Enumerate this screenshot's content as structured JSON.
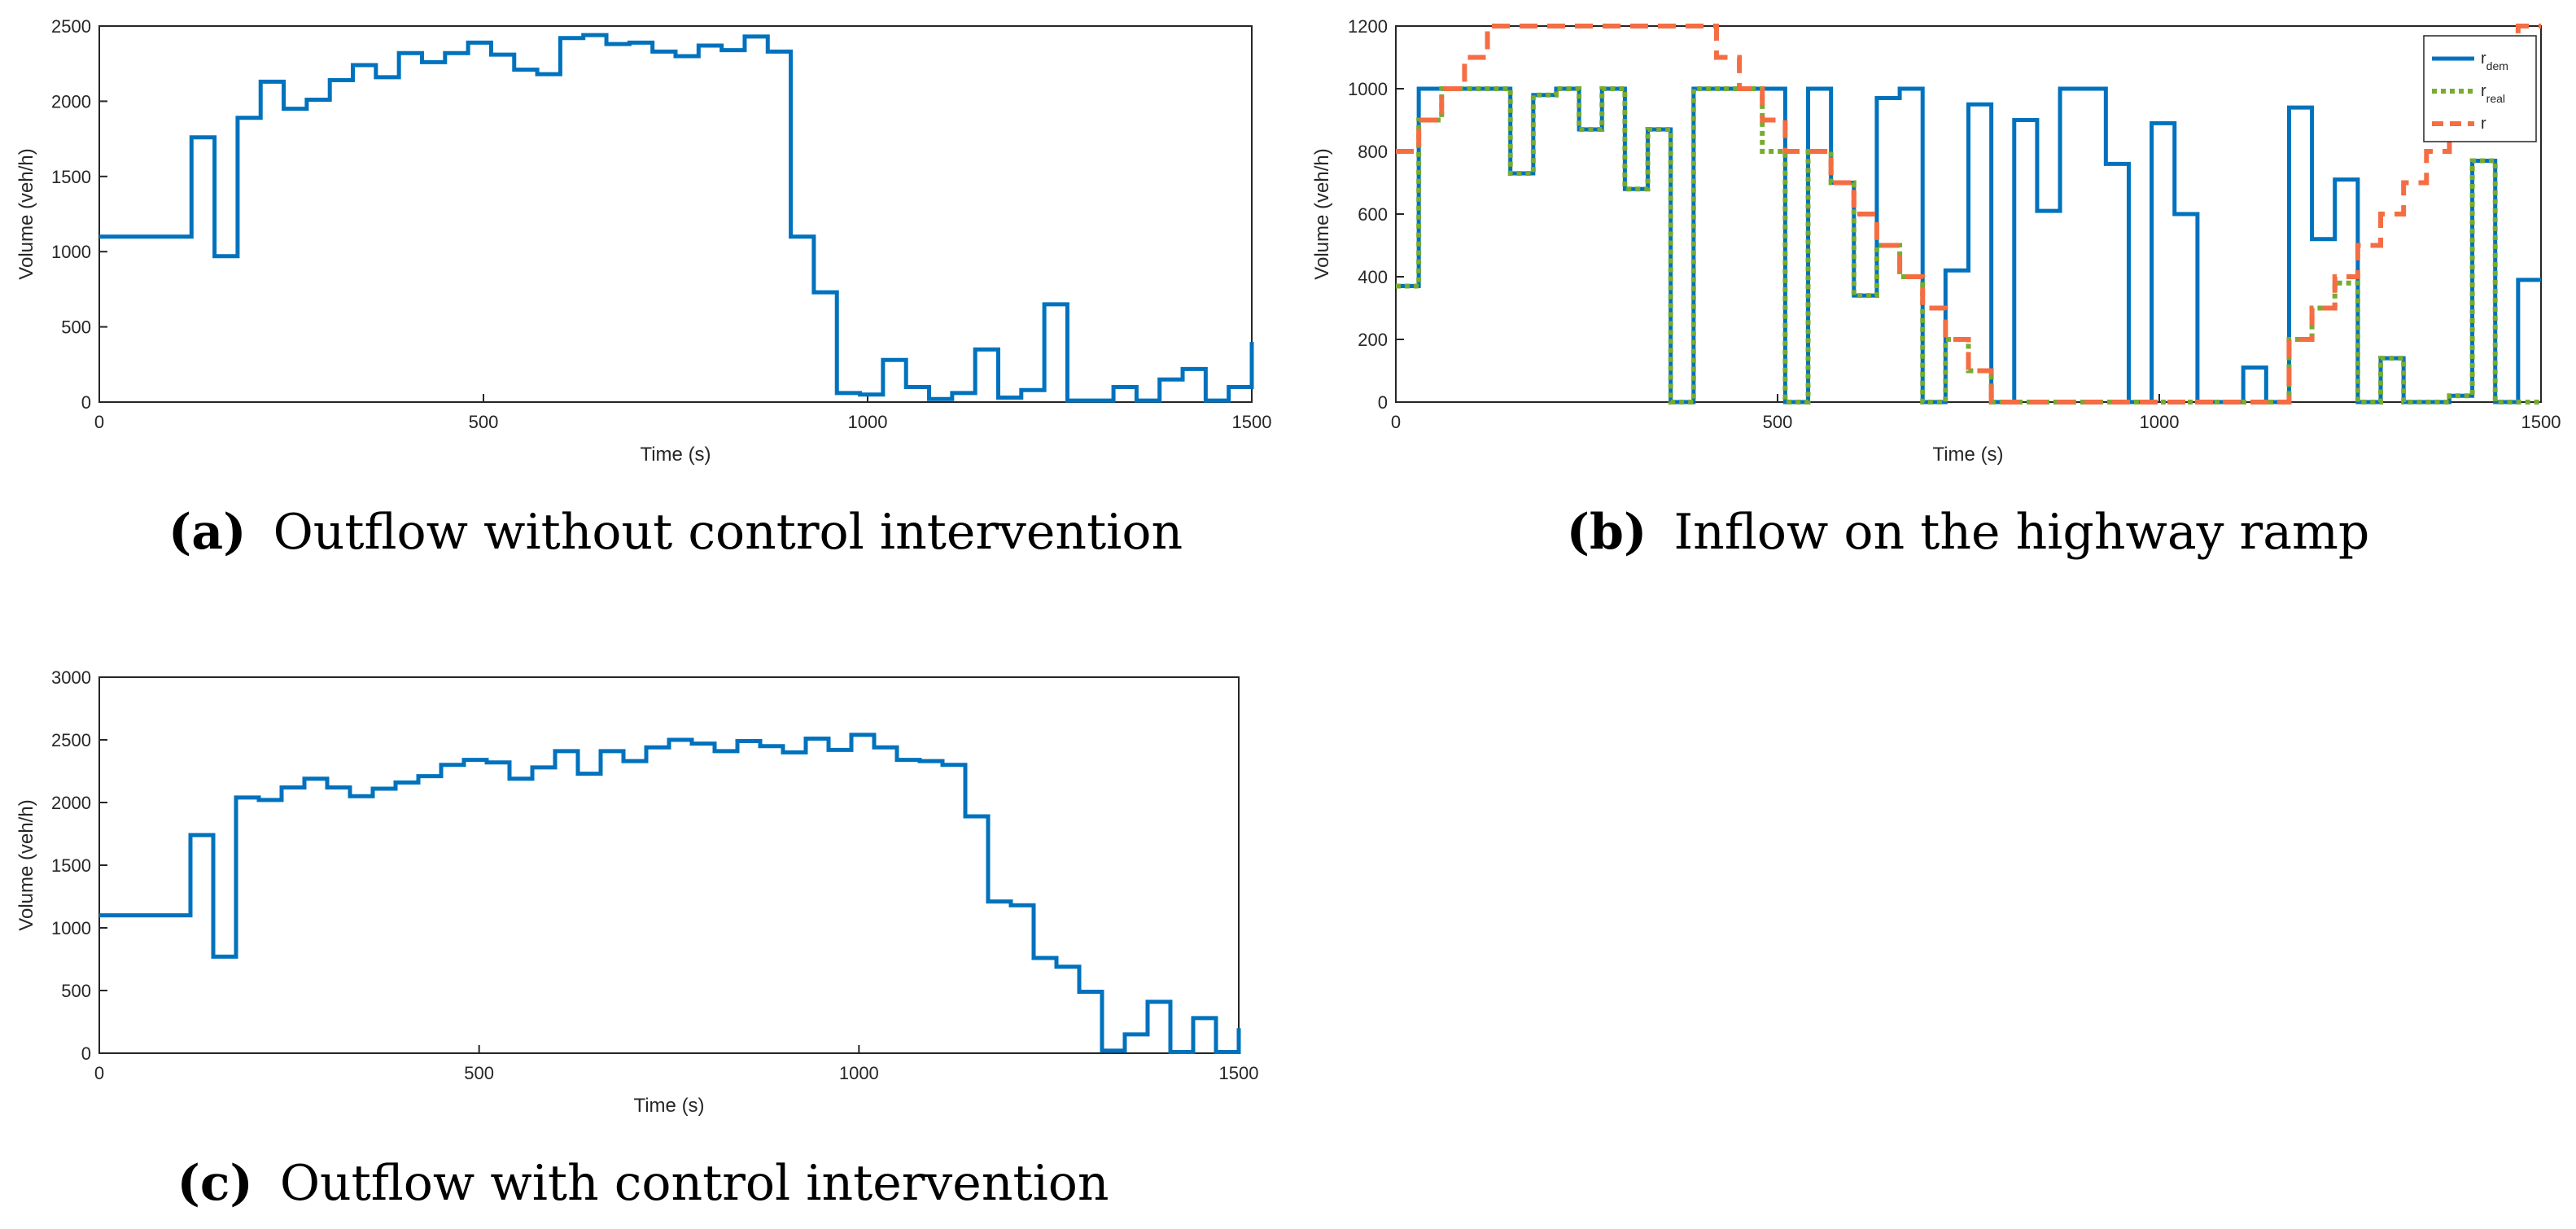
{
  "colors": {
    "dem": "#0072BD",
    "real": "#77AC30",
    "r": "#F46D43",
    "axis": "#262626"
  },
  "chart_data": [
    {
      "id": "a",
      "type": "line",
      "step": true,
      "caption_letter": "(a)",
      "caption_text": "Outflow without control intervention",
      "xlabel": "Time (s)",
      "ylabel": "Volume (veh/h)",
      "xlim": [
        0,
        1500
      ],
      "ylim": [
        0,
        2500
      ],
      "xticks": [
        0,
        500,
        1000,
        1500
      ],
      "yticks": [
        0,
        500,
        1000,
        1500,
        2000,
        2500
      ],
      "series": [
        {
          "name": "outflow",
          "color_key": "dem",
          "dash": "solid",
          "x": [
            0,
            120,
            150,
            180,
            210,
            240,
            270,
            300,
            330,
            360,
            390,
            420,
            450,
            480,
            510,
            540,
            570,
            600,
            630,
            660,
            690,
            720,
            750,
            780,
            810,
            840,
            870,
            900,
            930,
            960,
            990,
            1020,
            1050,
            1080,
            1110,
            1140,
            1170,
            1200,
            1230,
            1260,
            1290,
            1320,
            1350,
            1380,
            1410,
            1440,
            1470,
            1500
          ],
          "y": [
            1100,
            1760,
            970,
            1890,
            2130,
            1950,
            2010,
            2140,
            2240,
            2160,
            2320,
            2260,
            2320,
            2390,
            2310,
            2210,
            2180,
            2420,
            2440,
            2380,
            2390,
            2330,
            2300,
            2370,
            2340,
            2430,
            2330,
            1100,
            730,
            60,
            50,
            280,
            100,
            20,
            60,
            350,
            30,
            80,
            650,
            10,
            10,
            100,
            10,
            150,
            220,
            10,
            100,
            400
          ]
        }
      ]
    },
    {
      "id": "b",
      "type": "line",
      "step": true,
      "caption_letter": "(b)",
      "caption_text": "Inflow on the highway ramp",
      "xlabel": "Time (s)",
      "ylabel": "Volume (veh/h)",
      "xlim": [
        0,
        1500
      ],
      "ylim": [
        0,
        1200
      ],
      "xticks": [
        0,
        500,
        1000,
        1500
      ],
      "yticks": [
        0,
        200,
        400,
        600,
        800,
        1000,
        1200
      ],
      "legend": {
        "position": "top-right",
        "entries": [
          {
            "key": "dem",
            "base": "r",
            "sub": "dem"
          },
          {
            "key": "real",
            "base": "r",
            "sub": "real"
          },
          {
            "key": "r",
            "base": "r",
            "sub": ""
          }
        ]
      },
      "series": [
        {
          "name": "r_dem",
          "color_key": "dem",
          "dash": "solid",
          "x": [
            0,
            30,
            60,
            90,
            120,
            150,
            180,
            210,
            240,
            270,
            300,
            330,
            360,
            390,
            420,
            450,
            480,
            510,
            540,
            570,
            600,
            630,
            660,
            690,
            720,
            750,
            780,
            810,
            840,
            870,
            900,
            930,
            960,
            990,
            1020,
            1050,
            1080,
            1110,
            1140,
            1170,
            1200,
            1230,
            1260,
            1290,
            1320,
            1350,
            1380,
            1410,
            1440,
            1470,
            1500
          ],
          "y": [
            370,
            1000,
            1000,
            1000,
            1000,
            730,
            980,
            1000,
            870,
            1000,
            680,
            870,
            0,
            1000,
            1000,
            1000,
            1000,
            0,
            1000,
            700,
            340,
            970,
            1000,
            0,
            420,
            950,
            0,
            900,
            610,
            1000,
            1000,
            760,
            0,
            890,
            600,
            0,
            0,
            110,
            0,
            940,
            520,
            710,
            0,
            140,
            0,
            0,
            20,
            770,
            0,
            390,
            390
          ]
        },
        {
          "name": "r_real",
          "color_key": "real",
          "dash": "dot",
          "x": [
            0,
            30,
            60,
            90,
            120,
            150,
            180,
            210,
            240,
            270,
            300,
            330,
            360,
            390,
            420,
            450,
            480,
            510,
            540,
            570,
            600,
            630,
            660,
            690,
            720,
            750,
            780,
            810,
            840,
            870,
            900,
            930,
            960,
            990,
            1020,
            1050,
            1080,
            1110,
            1140,
            1170,
            1200,
            1230,
            1260,
            1290,
            1320,
            1350,
            1380,
            1410,
            1440,
            1470,
            1500
          ],
          "y": [
            370,
            900,
            1000,
            1000,
            1000,
            730,
            980,
            1000,
            870,
            1000,
            680,
            870,
            0,
            1000,
            1000,
            1000,
            800,
            0,
            800,
            700,
            340,
            500,
            400,
            0,
            200,
            100,
            0,
            0,
            0,
            0,
            0,
            0,
            0,
            0,
            0,
            0,
            0,
            0,
            0,
            200,
            300,
            380,
            0,
            140,
            0,
            0,
            20,
            770,
            0,
            0,
            0
          ]
        },
        {
          "name": "r",
          "color_key": "r",
          "dash": "dash",
          "x": [
            0,
            30,
            60,
            90,
            120,
            150,
            180,
            210,
            240,
            270,
            300,
            330,
            360,
            390,
            420,
            450,
            480,
            510,
            540,
            570,
            600,
            630,
            660,
            690,
            720,
            750,
            780,
            810,
            840,
            870,
            900,
            930,
            960,
            990,
            1020,
            1050,
            1080,
            1110,
            1140,
            1170,
            1200,
            1230,
            1260,
            1290,
            1320,
            1350,
            1380,
            1410,
            1440,
            1470,
            1500
          ],
          "y": [
            800,
            900,
            1000,
            1100,
            1200,
            1200,
            1200,
            1200,
            1200,
            1200,
            1200,
            1200,
            1200,
            1200,
            1100,
            1000,
            900,
            800,
            800,
            700,
            600,
            500,
            400,
            300,
            200,
            100,
            0,
            0,
            0,
            0,
            0,
            0,
            0,
            0,
            0,
            0,
            0,
            0,
            0,
            200,
            300,
            400,
            500,
            600,
            700,
            800,
            900,
            1000,
            1100,
            1200,
            1200
          ]
        }
      ]
    },
    {
      "id": "c",
      "type": "line",
      "step": true,
      "caption_letter": "(c)",
      "caption_text": "Outflow with control intervention",
      "xlabel": "Time (s)",
      "ylabel": "Volume (veh/h)",
      "xlim": [
        0,
        1500
      ],
      "ylim": [
        0,
        3000
      ],
      "xticks": [
        0,
        500,
        1000,
        1500
      ],
      "yticks": [
        0,
        500,
        1000,
        1500,
        2000,
        2500,
        3000
      ],
      "series": [
        {
          "name": "outflow",
          "color_key": "dem",
          "dash": "solid",
          "x": [
            0,
            120,
            150,
            180,
            210,
            240,
            270,
            300,
            330,
            360,
            390,
            420,
            450,
            480,
            510,
            540,
            570,
            600,
            630,
            660,
            690,
            720,
            750,
            780,
            810,
            840,
            870,
            900,
            930,
            960,
            990,
            1020,
            1050,
            1080,
            1110,
            1140,
            1170,
            1200,
            1230,
            1260,
            1290,
            1320,
            1350,
            1380,
            1410,
            1440,
            1470,
            1500
          ],
          "y": [
            1100,
            1740,
            770,
            2040,
            2020,
            2120,
            2190,
            2120,
            2050,
            2110,
            2160,
            2210,
            2300,
            2340,
            2320,
            2190,
            2280,
            2410,
            2230,
            2410,
            2330,
            2440,
            2500,
            2470,
            2410,
            2490,
            2450,
            2400,
            2510,
            2420,
            2540,
            2440,
            2340,
            2330,
            2300,
            1890,
            1210,
            1180,
            760,
            690,
            490,
            20,
            150,
            410,
            10,
            280,
            10,
            200
          ]
        }
      ]
    }
  ]
}
